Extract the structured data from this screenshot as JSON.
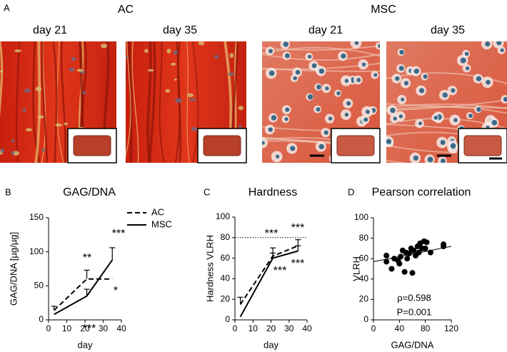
{
  "panel_a": {
    "label": "A",
    "groups": [
      "AC",
      "MSC"
    ],
    "images": [
      "day 21",
      "day 35",
      "day 21",
      "day 35"
    ]
  },
  "chart_data": [
    {
      "type": "line",
      "panel": "B",
      "title": "GAG/DNA",
      "x_label": "day",
      "y_label": "GAG/DNA [µg/µg]",
      "x": [
        3,
        21,
        35
      ],
      "xlim": [
        0,
        40
      ],
      "xticks": [
        0,
        10,
        20,
        30,
        40
      ],
      "ylim": [
        0,
        150
      ],
      "yticks": [
        0,
        50,
        100,
        150
      ],
      "legend": true,
      "series": [
        {
          "name": "AC",
          "color": "#000000",
          "dash": true,
          "values": [
            14,
            60,
            60
          ],
          "errors": [
            6,
            13,
            null
          ]
        },
        {
          "name": "MSC",
          "color": "#000000",
          "dash": false,
          "values": [
            8,
            35,
            88
          ],
          "errors": [
            null,
            10,
            18
          ]
        }
      ],
      "annotations": [
        "**",
        "***",
        "***",
        "*"
      ]
    },
    {
      "type": "line",
      "panel": "C",
      "title": "Hardness",
      "x_label": "day",
      "y_label": "Hardness VLRH",
      "x": [
        3,
        21,
        35
      ],
      "xlim": [
        0,
        40
      ],
      "xticks": [
        0,
        10,
        20,
        30,
        40
      ],
      "ylim": [
        0,
        100
      ],
      "yticks": [
        0,
        20,
        40,
        60,
        80,
        100
      ],
      "reference_line": 80,
      "series": [
        {
          "name": "AC",
          "color": "#000000",
          "dash": true,
          "values": [
            15,
            62,
            72
          ],
          "errors": [
            7,
            8,
            6
          ]
        },
        {
          "name": "MSC",
          "color": "#000000",
          "dash": false,
          "values": [
            3,
            60,
            67
          ],
          "errors": [
            null,
            5,
            5
          ]
        }
      ],
      "annotations": [
        "***",
        "***",
        "***",
        "***"
      ]
    },
    {
      "type": "scatter",
      "panel": "D",
      "title": "Pearson correlation",
      "x_label": "GAG/DNA",
      "y_label": "VLRH",
      "xlim": [
        0,
        120
      ],
      "xticks": [
        0,
        40,
        80,
        120
      ],
      "ylim": [
        0,
        100
      ],
      "yticks": [
        0,
        20,
        40,
        60,
        80,
        100
      ],
      "color": "#000000",
      "x": [
        20,
        20,
        28,
        32,
        38,
        40,
        42,
        45,
        48,
        50,
        52,
        55,
        58,
        60,
        62,
        65,
        68,
        70,
        72,
        75,
        78,
        80,
        82,
        88,
        108,
        108
      ],
      "values": [
        63,
        57,
        50,
        60,
        58,
        55,
        62,
        68,
        47,
        66,
        60,
        65,
        70,
        46,
        68,
        63,
        72,
        66,
        75,
        70,
        77,
        70,
        76,
        66,
        74,
        72
      ],
      "trend": {
        "x": [
          0,
          120
        ],
        "y": [
          57,
          72
        ]
      },
      "annotations": [
        "ρ=0.598",
        "P=0.001"
      ]
    }
  ]
}
